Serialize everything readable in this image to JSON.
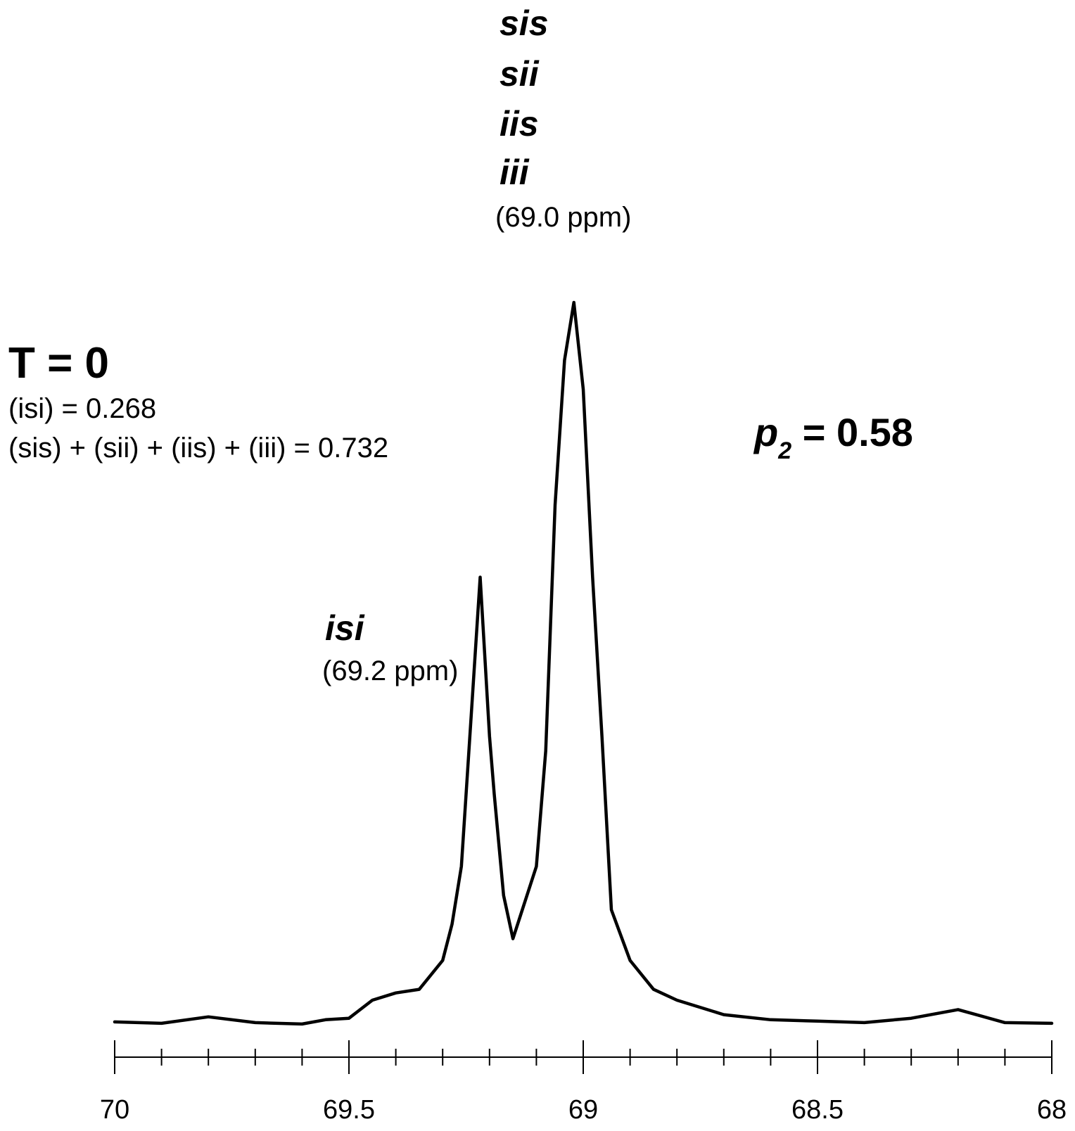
{
  "chart_data": {
    "type": "line",
    "title": "",
    "xlabel": "",
    "ylabel": "",
    "xlim": [
      70,
      68
    ],
    "x_reversed": true,
    "grid": false,
    "y_axis_shown": false,
    "x_ticks_major": [
      70,
      69.5,
      69,
      68.5,
      68
    ],
    "x_tick_labels": [
      "70",
      "69.5",
      "69",
      "68.5",
      "68"
    ],
    "x_tick_minor_step": 0.1,
    "series": [
      {
        "color": "#000000",
        "points": [
          [
            70.0,
            0.005
          ],
          [
            69.9,
            0.003
          ],
          [
            69.8,
            0.012
          ],
          [
            69.7,
            0.004
          ],
          [
            69.6,
            0.002
          ],
          [
            69.55,
            0.008
          ],
          [
            69.5,
            0.01
          ],
          [
            69.45,
            0.035
          ],
          [
            69.4,
            0.045
          ],
          [
            69.35,
            0.05
          ],
          [
            69.3,
            0.09
          ],
          [
            69.28,
            0.14
          ],
          [
            69.26,
            0.22
          ],
          [
            69.24,
            0.42
          ],
          [
            69.22,
            0.62
          ],
          [
            69.2,
            0.4
          ],
          [
            69.19,
            0.32
          ],
          [
            69.17,
            0.18
          ],
          [
            69.15,
            0.12
          ],
          [
            69.13,
            0.16
          ],
          [
            69.1,
            0.22
          ],
          [
            69.08,
            0.38
          ],
          [
            69.06,
            0.72
          ],
          [
            69.04,
            0.92
          ],
          [
            69.02,
            1.0
          ],
          [
            69.0,
            0.88
          ],
          [
            68.98,
            0.62
          ],
          [
            68.96,
            0.4
          ],
          [
            68.94,
            0.16
          ],
          [
            68.9,
            0.09
          ],
          [
            68.85,
            0.05
          ],
          [
            68.8,
            0.035
          ],
          [
            68.7,
            0.015
          ],
          [
            68.6,
            0.008
          ],
          [
            68.5,
            0.006
          ],
          [
            68.4,
            0.004
          ],
          [
            68.3,
            0.01
          ],
          [
            68.2,
            0.022
          ],
          [
            68.1,
            0.004
          ],
          [
            68.0,
            0.003
          ]
        ]
      }
    ]
  },
  "annotations": {
    "main_peak": {
      "labels": [
        "sis",
        "sii",
        "iis",
        "iii"
      ],
      "ppm": "(69.0 ppm)"
    },
    "minor_peak": {
      "label": "isi",
      "ppm": "(69.2 ppm)"
    },
    "condition": {
      "title": "T = 0",
      "line1": "(isi) = 0.268",
      "line2": "(sis) + (sii) + (iis) + (iii) = 0.732"
    },
    "p2": {
      "symbol": "p",
      "subscript": "2",
      "value": " = 0.58"
    }
  }
}
